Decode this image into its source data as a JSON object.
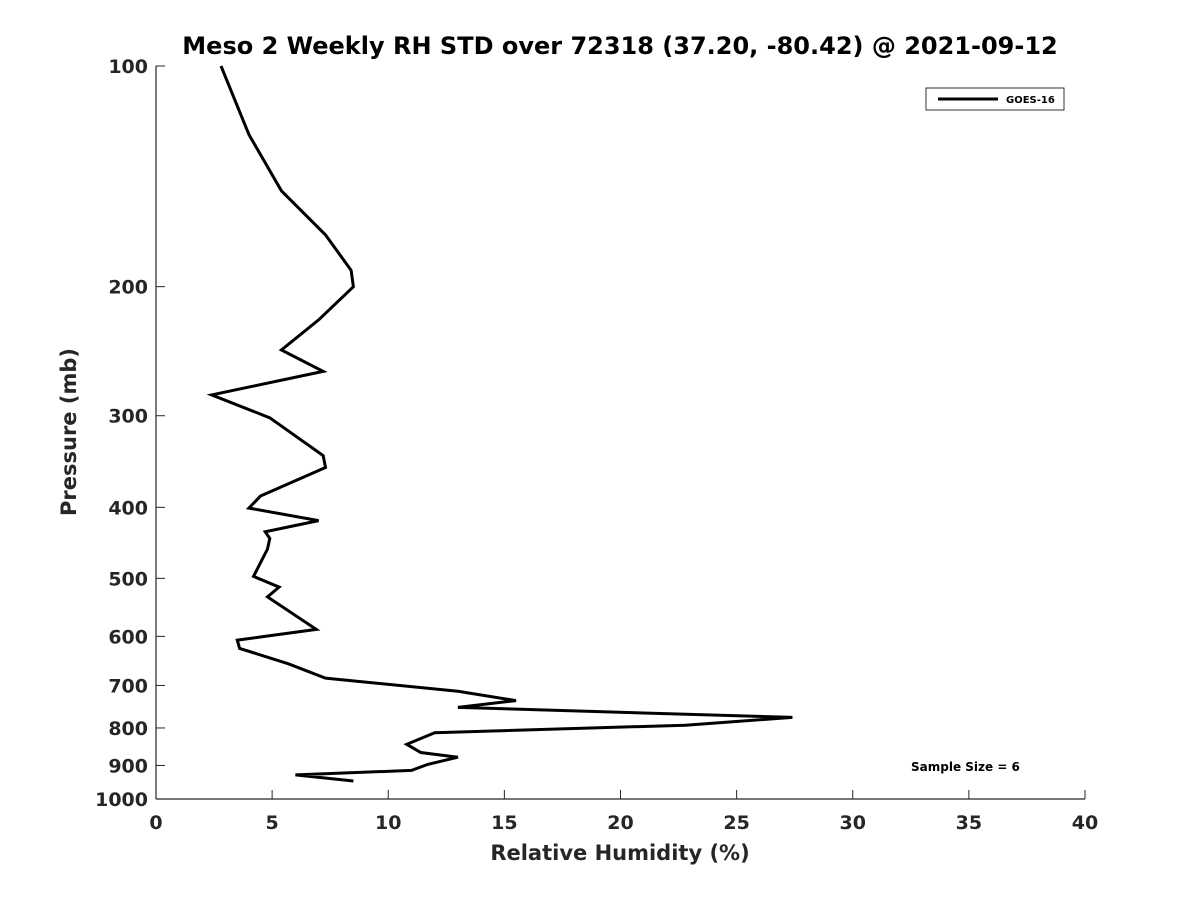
{
  "chart_data": {
    "type": "line",
    "title": "Meso 2 Weekly RH STD over 72318 (37.20, -80.42) @ 2021-09-12",
    "xlabel": "Relative Humidity (%)",
    "ylabel": "Pressure (mb)",
    "xlim": [
      0,
      40
    ],
    "ylim": [
      100,
      1000
    ],
    "y_scale": "log",
    "y_reversed": true,
    "x_ticks": [
      0,
      5,
      10,
      15,
      20,
      25,
      30,
      35,
      40
    ],
    "y_ticks": [
      100,
      200,
      300,
      400,
      500,
      600,
      700,
      800,
      900,
      1000
    ],
    "grid": false,
    "legend_position": "top-right",
    "annotation": "Sample Size = 6",
    "series": [
      {
        "name": "GOES-16",
        "color": "#000000",
        "x": [
          2.8,
          4.0,
          5.4,
          7.3,
          8.4,
          8.5,
          7.0,
          5.4,
          7.2,
          2.4,
          4.9,
          6.2,
          7.2,
          7.3,
          4.5,
          4.0,
          7.0,
          4.7,
          4.9,
          4.8,
          4.2,
          5.3,
          4.8,
          6.9,
          3.5,
          3.6,
          5.7,
          7.3,
          13.0,
          15.5,
          13.0,
          27.4,
          22.8,
          12.0,
          10.8,
          11.4,
          13.0,
          11.7,
          11.0,
          6.0,
          8.5
        ],
        "y": [
          100,
          124,
          148,
          170,
          190,
          200,
          222,
          244,
          261,
          281,
          302,
          323,
          340,
          353,
          386,
          401,
          417,
          432,
          441,
          456,
          497,
          514,
          530,
          587,
          607,
          623,
          654,
          684,
          713,
          734,
          750,
          774,
          793,
          812,
          842,
          864,
          877,
          897,
          914,
          927,
          945
        ]
      }
    ]
  }
}
